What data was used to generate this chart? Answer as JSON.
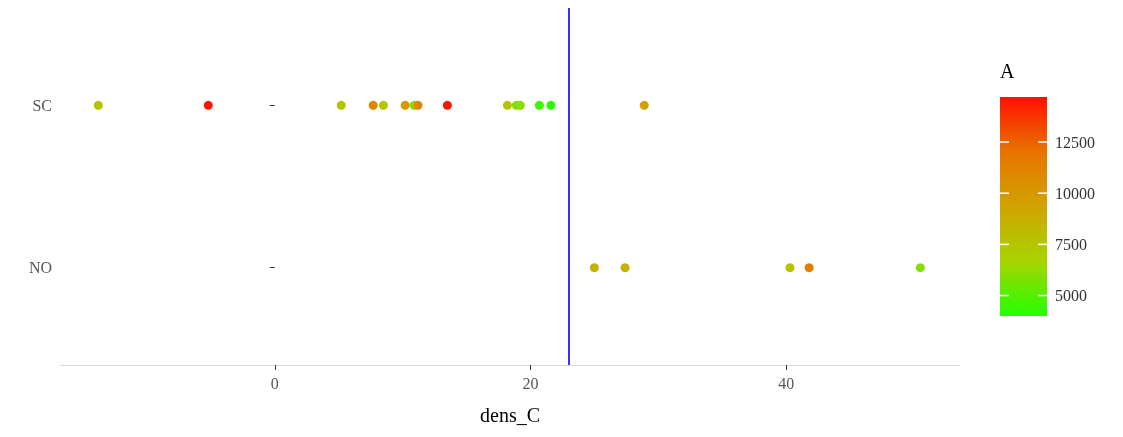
{
  "chart_data": {
    "type": "scatter",
    "xlabel": "dens_C",
    "clabel": "A",
    "orientation": "horizontal",
    "categories": [
      "SC",
      "NO"
    ],
    "series": [
      {
        "x": [
          "SC",
          "SC",
          "SC",
          "SC",
          "SC",
          "SC",
          "SC",
          "SC",
          "SC",
          "SC",
          "SC",
          "SC",
          "SC",
          "SC",
          "SC",
          "NO",
          "NO",
          "NO",
          "NO",
          "NO"
        ],
        "values": [
          -13.8,
          -5.2,
          5.2,
          7.7,
          8.5,
          10.2,
          10.9,
          11.2,
          13.5,
          18.2,
          18.9,
          19.2,
          20.7,
          21.6,
          28.9,
          25.0,
          27.4,
          40.3,
          41.8,
          50.5
        ],
        "cvalues": [
          7500,
          14500,
          7500,
          11000,
          7500,
          10000,
          6000,
          11000,
          14500,
          7500,
          6000,
          6000,
          4500,
          4200,
          9500,
          8500,
          8500,
          7800,
          11500,
          6000
        ]
      }
    ],
    "xlim": [
      -16.8,
      53.6
    ],
    "xticks": [
      0,
      20,
      40
    ],
    "clim": [
      4000,
      14700
    ],
    "cticks": [
      5000,
      7500,
      10000,
      12500
    ],
    "colors": [
      "#22ff00",
      "#a8d400",
      "#d0a400",
      "#e87400",
      "#ff1000"
    ],
    "ref_lines": [
      {
        "axis": "x",
        "value": 23.0,
        "color": "#3333ff"
      }
    ],
    "marker": "circle",
    "grid": false
  }
}
